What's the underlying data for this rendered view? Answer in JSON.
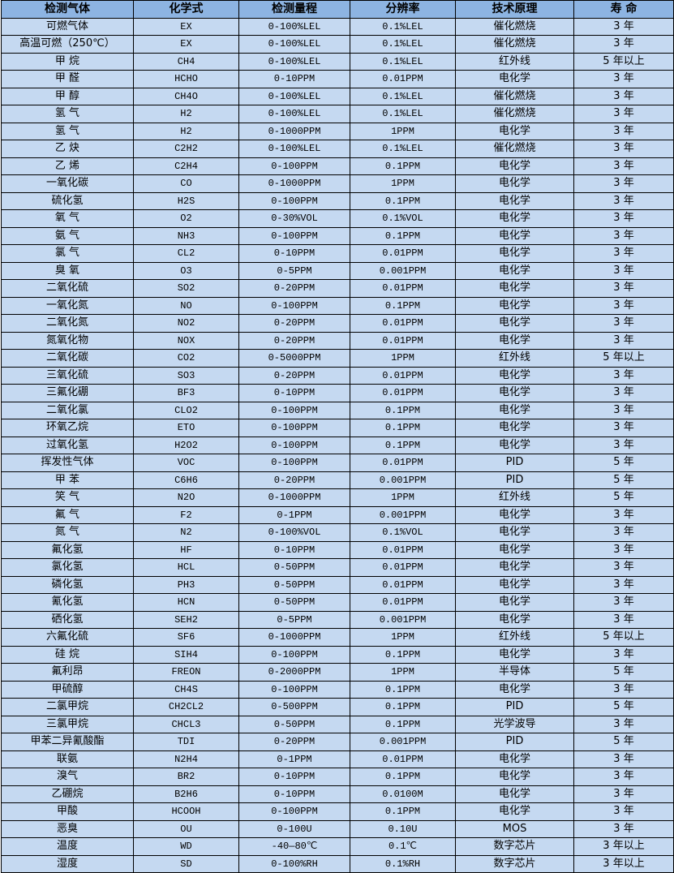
{
  "headers": [
    "检测气体",
    "化学式",
    "检测量程",
    "分辨率",
    "技术原理",
    "寿 命"
  ],
  "colors": {
    "header_bg": "#8db4e2",
    "row_bg": "#c5d9f1",
    "border": "#000000"
  },
  "rows": [
    [
      "可燃气体",
      "EX",
      "0-100%LEL",
      "0.1%LEL",
      "催化燃烧",
      "3 年"
    ],
    [
      "高温可燃（250℃）",
      "EX",
      "0-100%LEL",
      "0.1%LEL",
      "催化燃烧",
      "3 年"
    ],
    [
      "甲 烷",
      "CH4",
      "0-100%LEL",
      "0.1%LEL",
      "红外线",
      "5 年以上"
    ],
    [
      "甲 醛",
      "HCHO",
      "0-10PPM",
      "0.01PPM",
      "电化学",
      "3 年"
    ],
    [
      "甲 醇",
      "CH4O",
      "0-100%LEL",
      "0.1%LEL",
      "催化燃烧",
      "3 年"
    ],
    [
      "氢 气",
      "H2",
      "0-100%LEL",
      "0.1%LEL",
      "催化燃烧",
      "3 年"
    ],
    [
      "氢 气",
      "H2",
      "0-1000PPM",
      "1PPM",
      "电化学",
      "3 年"
    ],
    [
      "乙 炔",
      "C2H2",
      "0-100%LEL",
      "0.1%LEL",
      "催化燃烧",
      "3 年"
    ],
    [
      "乙 烯",
      "C2H4",
      "0-100PPM",
      "0.1PPM",
      "电化学",
      "3 年"
    ],
    [
      "一氧化碳",
      "CO",
      "0-1000PPM",
      "1PPM",
      "电化学",
      "3 年"
    ],
    [
      "硫化氢",
      "H2S",
      "0-100PPM",
      "0.1PPM",
      "电化学",
      "3 年"
    ],
    [
      "氧 气",
      "O2",
      "0-30%VOL",
      "0.1%VOL",
      "电化学",
      "3 年"
    ],
    [
      "氨 气",
      "NH3",
      "0-100PPM",
      "0.1PPM",
      "电化学",
      "3 年"
    ],
    [
      "氯 气",
      "CL2",
      "0-10PPM",
      "0.01PPM",
      "电化学",
      "3 年"
    ],
    [
      "臭 氧",
      "O3",
      "0-5PPM",
      "0.001PPM",
      "电化学",
      "3 年"
    ],
    [
      "二氧化硫",
      "SO2",
      "0-20PPM",
      "0.01PPM",
      "电化学",
      "3 年"
    ],
    [
      "一氧化氮",
      "NO",
      "0-100PPM",
      "0.1PPM",
      "电化学",
      "3 年"
    ],
    [
      "二氧化氮",
      "NO2",
      "0-20PPM",
      "0.01PPM",
      "电化学",
      "3 年"
    ],
    [
      "氮氧化物",
      "NOX",
      "0-20PPM",
      "0.01PPM",
      "电化学",
      "3 年"
    ],
    [
      "二氧化碳",
      "CO2",
      "0-5000PPM",
      "1PPM",
      "红外线",
      "5 年以上"
    ],
    [
      "三氧化硫",
      "SO3",
      "0-20PPM",
      "0.01PPM",
      "电化学",
      "3 年"
    ],
    [
      "三氟化硼",
      "BF3",
      "0-10PPM",
      "0.01PPM",
      "电化学",
      "3 年"
    ],
    [
      "二氧化氯",
      "CLO2",
      "0-100PPM",
      "0.1PPM",
      "电化学",
      "3 年"
    ],
    [
      "环氧乙烷",
      "ETO",
      "0-100PPM",
      "0.1PPM",
      "电化学",
      "3 年"
    ],
    [
      "过氧化氢",
      "H2O2",
      "0-100PPM",
      "0.1PPM",
      "电化学",
      "3 年"
    ],
    [
      "挥发性气体",
      "VOC",
      "0-100PPM",
      "0.01PPM",
      "PID",
      "5 年"
    ],
    [
      "甲 苯",
      "C6H6",
      "0-20PPM",
      "0.001PPM",
      "PID",
      "5 年"
    ],
    [
      "笑 气",
      "N2O",
      "0-1000PPM",
      "1PPM",
      "红外线",
      "5 年"
    ],
    [
      "氟 气",
      "F2",
      "0-1PPM",
      "0.001PPM",
      "电化学",
      "3 年"
    ],
    [
      "氮 气",
      "N2",
      "0-100%VOL",
      "0.1%VOL",
      "电化学",
      "3 年"
    ],
    [
      "氟化氢",
      "HF",
      "0-10PPM",
      "0.01PPM",
      "电化学",
      "3 年"
    ],
    [
      "氯化氢",
      "HCL",
      "0-50PPM",
      "0.01PPM",
      "电化学",
      "3 年"
    ],
    [
      "磷化氢",
      "PH3",
      "0-50PPM",
      "0.01PPM",
      "电化学",
      "3 年"
    ],
    [
      "氰化氢",
      "HCN",
      "0-50PPM",
      "0.01PPM",
      "电化学",
      "3 年"
    ],
    [
      "硒化氢",
      "SEH2",
      "0-5PPM",
      "0.001PPM",
      "电化学",
      "3 年"
    ],
    [
      "六氟化硫",
      "SF6",
      "0-1000PPM",
      "1PPM",
      "红外线",
      "5 年以上"
    ],
    [
      "硅 烷",
      "SIH4",
      "0-100PPM",
      "0.1PPM",
      "电化学",
      "3 年"
    ],
    [
      "氟利昂",
      "FREON",
      "0-2000PPM",
      "1PPM",
      "半导体",
      "5 年"
    ],
    [
      "甲硫醇",
      "CH4S",
      "0-100PPM",
      "0.1PPM",
      "电化学",
      "3 年"
    ],
    [
      "二氯甲烷",
      "CH2CL2",
      "0-500PPM",
      "0.1PPM",
      "PID",
      "5 年"
    ],
    [
      "三氯甲烷",
      "CHCL3",
      "0-50PPM",
      "0.1PPM",
      "光学波导",
      "3 年"
    ],
    [
      "甲苯二异氰酸酯",
      "TDI",
      "0-20PPM",
      "0.001PPM",
      "PID",
      "5 年"
    ],
    [
      "联氨",
      "N2H4",
      "0-1PPM",
      "0.01PPM",
      "电化学",
      "3 年"
    ],
    [
      "溴气",
      "BR2",
      "0-10PPM",
      "0.1PPM",
      "电化学",
      "3 年"
    ],
    [
      "乙硼烷",
      "B2H6",
      "0-10PPM",
      "0.0100M",
      "电化学",
      "3 年"
    ],
    [
      "甲酸",
      "HCOOH",
      "0-100PPM",
      "0.1PPM",
      "电化学",
      "3 年"
    ],
    [
      "恶臭",
      "OU",
      "0-100U",
      "0.10U",
      "MOS",
      "3 年"
    ],
    [
      "温度",
      "WD",
      "-40—80℃",
      "0.1℃",
      "数字芯片",
      "3 年以上"
    ],
    [
      "湿度",
      "SD",
      "0-100%RH",
      "0.1%RH",
      "数字芯片",
      "3 年以上"
    ]
  ]
}
